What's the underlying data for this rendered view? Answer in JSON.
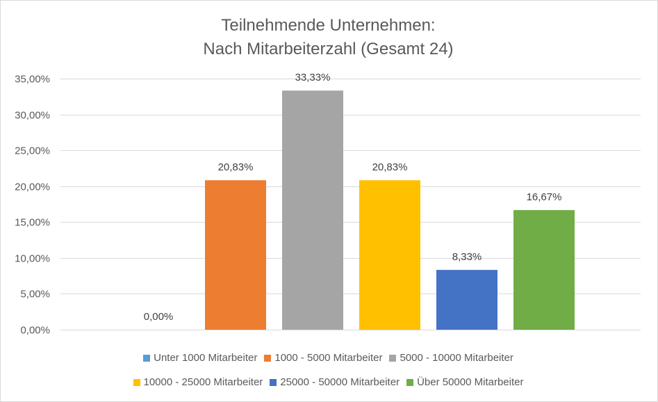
{
  "chart_data": {
    "type": "bar",
    "title": "Teilnehmende Unternehmen:",
    "subtitle": "Nach Mitarbeiterzahl (Gesamt 24)",
    "categories": [
      "Unter 1000 Mitarbeiter",
      "1000 - 5000 Mitarbeiter",
      "5000 - 10000 Mitarbeiter",
      "10000 - 25000 Mitarbeiter",
      "25000 - 50000 Mitarbeiter",
      "Über 50000 Mitarbeiter"
    ],
    "values": [
      0.0,
      20.83,
      33.33,
      20.83,
      8.33,
      16.67
    ],
    "value_labels": [
      "0,00%",
      "20,83%",
      "33,33%",
      "20,83%",
      "8,33%",
      "16,67%"
    ],
    "colors": [
      "#5b9bd5",
      "#ed7d31",
      "#a5a5a5",
      "#ffc000",
      "#4472c4",
      "#70ad47"
    ],
    "ylim": [
      0,
      35
    ],
    "yticks": [
      0,
      5,
      10,
      15,
      20,
      25,
      30,
      35
    ],
    "ytick_labels": [
      "0,00%",
      "5,00%",
      "10,00%",
      "15,00%",
      "20,00%",
      "25,00%",
      "30,00%",
      "35,00%"
    ],
    "grid": true,
    "legend_position": "bottom"
  }
}
